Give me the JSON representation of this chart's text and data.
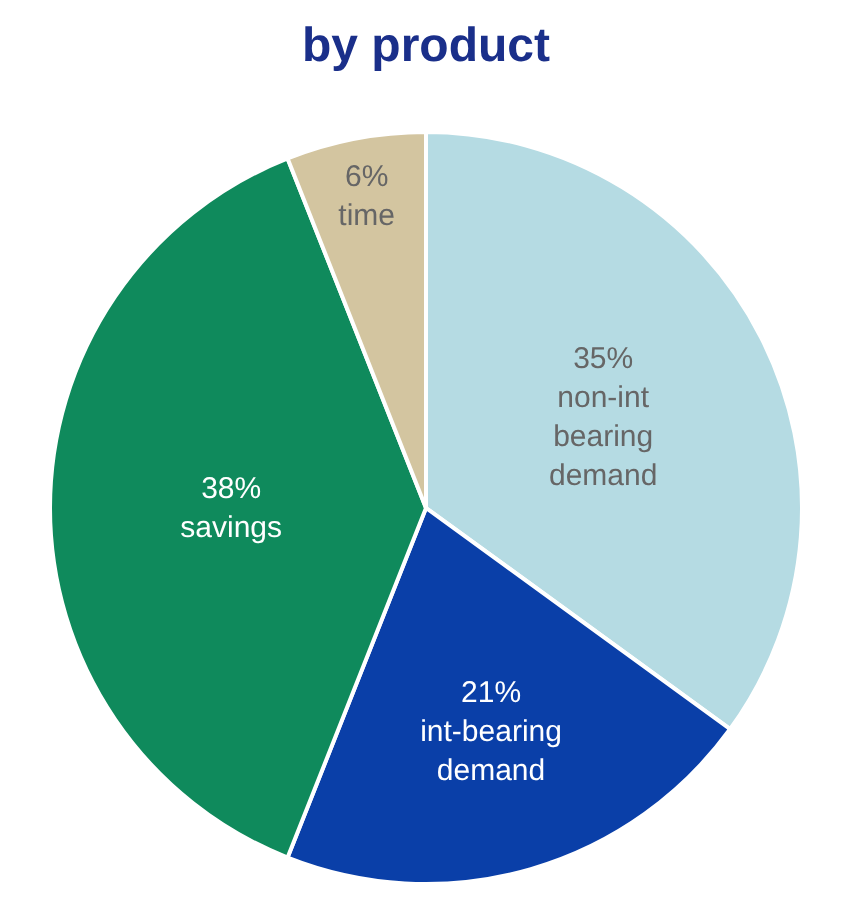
{
  "chart_data": {
    "type": "pie",
    "title": "by product",
    "categories": [
      "non-int\nbearing\ndemand",
      "int-bearing\ndemand",
      "savings",
      "time"
    ],
    "values": [
      35,
      21,
      38,
      6
    ],
    "value_labels": [
      "35%",
      "21%",
      "38%",
      "6%"
    ],
    "colors": [
      "#b5dbe3",
      "#0a3fa8",
      "#0f8a5c",
      "#d3c5a0"
    ],
    "legend": false
  }
}
